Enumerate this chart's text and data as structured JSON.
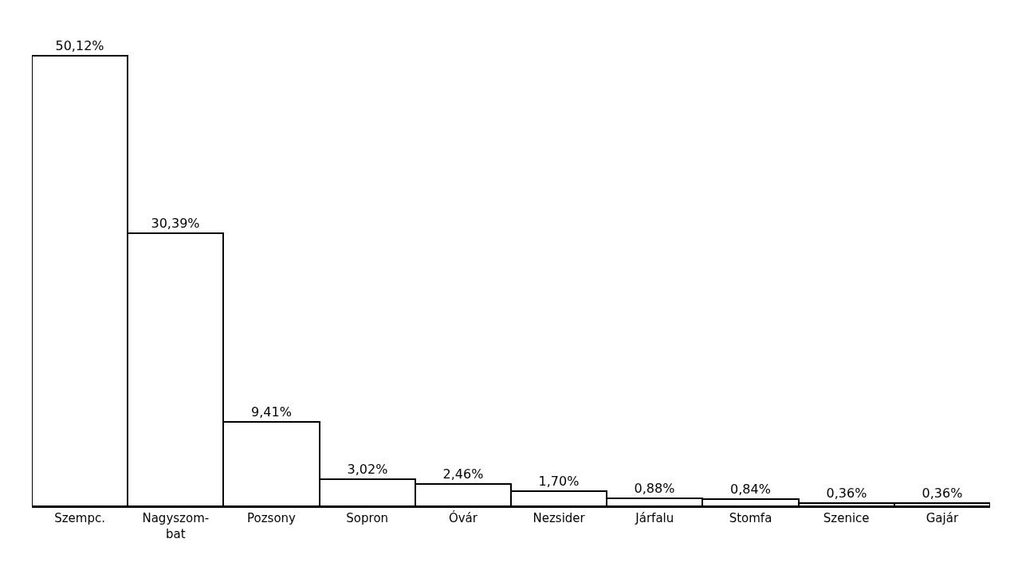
{
  "chart_data": {
    "type": "bar",
    "categories": [
      "Szempc.",
      "Nagyszom-\nbat",
      "Pozsony",
      "Sopron",
      "Óvár",
      "Nezsider",
      "Járfalu",
      "Stomfa",
      "Szenice",
      "Gajár"
    ],
    "values": [
      50.12,
      30.39,
      9.41,
      3.02,
      2.46,
      1.7,
      0.88,
      0.84,
      0.36,
      0.36
    ],
    "value_labels": [
      "50,12%",
      "30,39%",
      "9,41%",
      "3,02%",
      "2,46%",
      "1,70%",
      "0,88%",
      "0,84%",
      "0,36%",
      "0,36%"
    ],
    "color": "#ffffff",
    "grid": false,
    "legend": false
  }
}
